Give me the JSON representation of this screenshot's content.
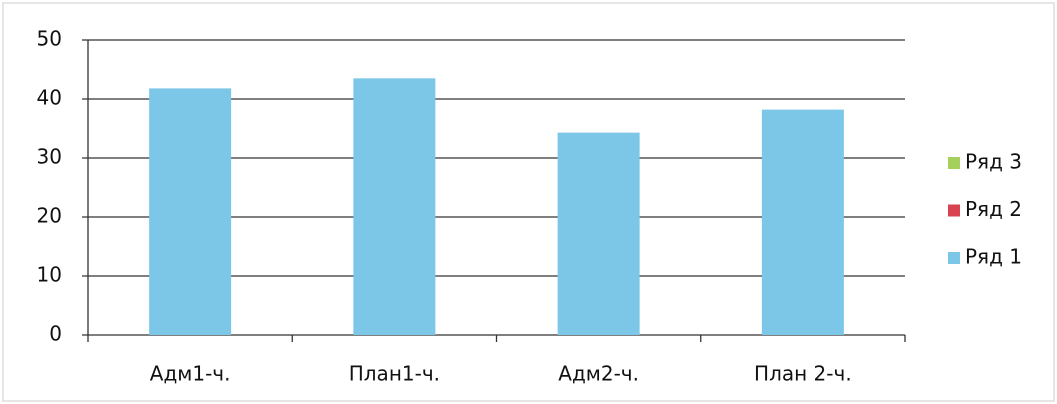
{
  "chart_data": {
    "type": "bar",
    "categories": [
      "Адм1-ч.",
      "План1-ч.",
      "Адм2-ч.",
      "План 2-ч."
    ],
    "series": [
      {
        "name": "Ряд 1",
        "color": "#7cc6e8",
        "values": [
          41.8,
          43.5,
          34.3,
          38.2
        ]
      },
      {
        "name": "Ряд 2",
        "color": "#d9434f",
        "values": [
          null,
          null,
          null,
          null
        ]
      },
      {
        "name": "Ряд 3",
        "color": "#a6d05c",
        "values": [
          null,
          null,
          null,
          null
        ]
      }
    ],
    "ylim": [
      0,
      50
    ],
    "yticks": [
      0,
      10,
      20,
      30,
      40,
      50
    ],
    "grid": true,
    "legend": "right"
  }
}
